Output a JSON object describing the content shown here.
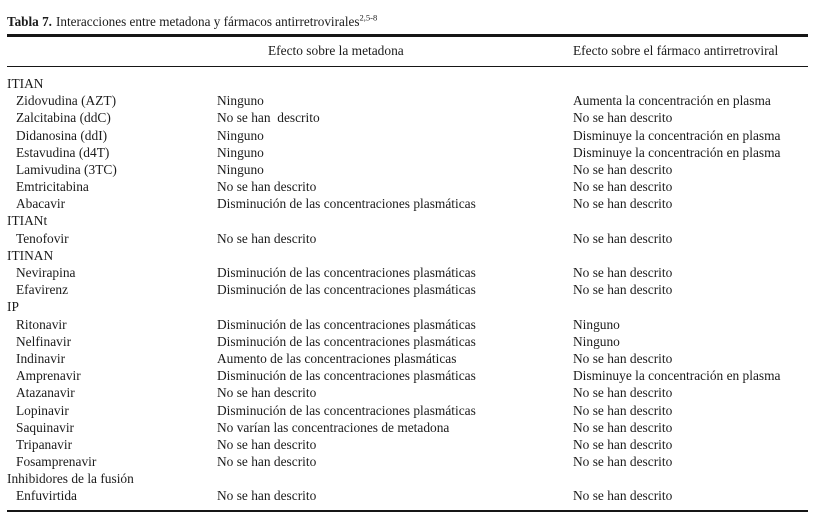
{
  "meta": {
    "background_color": "#ffffff",
    "text_color": "#1b1b1b",
    "rule_color": "#161616"
  },
  "table": {
    "caption": {
      "label": "Tabla 7.",
      "text": "Interacciones entre metadona y fármacos antirretrovirales",
      "superscript": "2,5-8"
    },
    "column_headers": {
      "drug": "",
      "methadone": "Efecto sobre la metadona",
      "antiretroviral": "Efecto sobre el fármaco antirretroviral"
    },
    "sections": [
      {
        "name": "ITIAN",
        "rows": [
          [
            "Zidovudina (AZT)",
            "Ninguno",
            "Aumenta la concentración en plasma"
          ],
          [
            "Zalcitabina (ddC)",
            "No se han  descrito",
            "No se han descrito"
          ],
          [
            "Didanosina (ddI)",
            "Ninguno",
            "Disminuye la concentración en plasma"
          ],
          [
            "Estavudina (d4T)",
            "Ninguno",
            "Disminuye la concentración en plasma"
          ],
          [
            "Lamivudina (3TC)",
            "Ninguno",
            "No se han descrito"
          ],
          [
            "Emtricitabina",
            "No se han descrito",
            "No se han descrito"
          ],
          [
            "Abacavir",
            "Disminución de las concentraciones plasmáticas",
            "No se han descrito"
          ]
        ]
      },
      {
        "name": "ITIANt",
        "rows": [
          [
            "Tenofovir",
            "No se han descrito",
            "No se han descrito"
          ]
        ]
      },
      {
        "name": "ITINAN",
        "rows": [
          [
            "Nevirapina",
            "Disminución de las concentraciones plasmáticas",
            "No se han descrito"
          ],
          [
            "Efavirenz",
            "Disminución de las concentraciones plasmáticas",
            "No se han descrito"
          ]
        ]
      },
      {
        "name": "IP",
        "rows": [
          [
            "Ritonavir",
            "Disminución de las concentraciones plasmáticas",
            "Ninguno"
          ],
          [
            "Nelfinavir",
            "Disminución de las concentraciones plasmáticas",
            "Ninguno"
          ],
          [
            "Indinavir",
            "Aumento de las concentraciones plasmáticas",
            "No se han descrito"
          ],
          [
            "Amprenavir",
            "Disminución de las concentraciones plasmáticas",
            "Disminuye la concentración en plasma"
          ],
          [
            "Atazanavir",
            "No se han descrito",
            "No se han descrito"
          ],
          [
            "Lopinavir",
            "Disminución de las concentraciones plasmáticas",
            "No se han descrito"
          ],
          [
            "Saquinavir",
            "No varían las concentraciones de metadona",
            "No se han descrito"
          ],
          [
            "Tripanavir",
            "No se han descrito",
            "No se han descrito"
          ],
          [
            "Fosamprenavir",
            "No se han descrito",
            "No se han descrito"
          ]
        ]
      },
      {
        "name": "Inhibidores de la fusión",
        "rows": [
          [
            "Enfuvirtida",
            "No se han descrito",
            "No se han descrito"
          ]
        ]
      }
    ]
  }
}
